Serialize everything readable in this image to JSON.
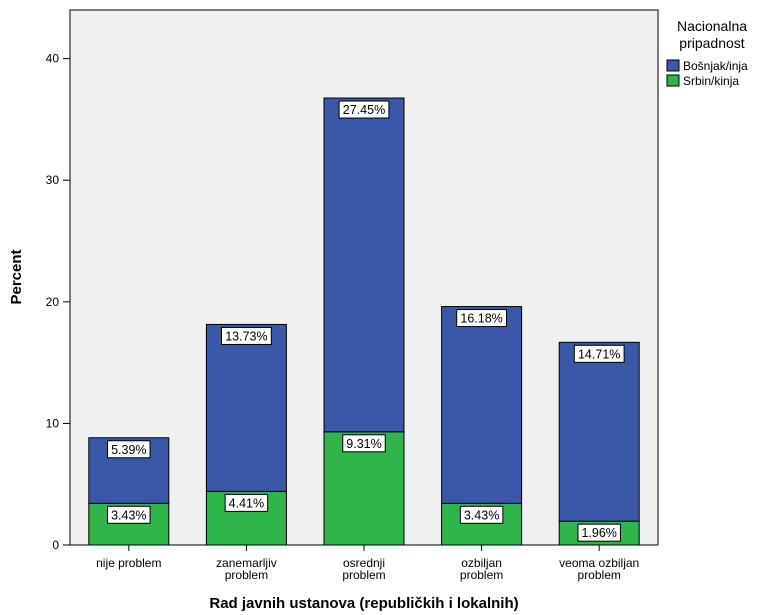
{
  "chart_data": {
    "type": "bar",
    "stacked": true,
    "xlabel": "Rad javnih ustanova (republičkih i lokalnih)",
    "ylabel": "Percent",
    "ylim": [
      0,
      44
    ],
    "yticks": [
      0,
      10,
      20,
      30,
      40
    ],
    "grid": false,
    "legend_position": "right",
    "legend_title": "Nacionalna pripadnost",
    "categories": [
      [
        "nije problem"
      ],
      [
        "zanemarljiv",
        "problem"
      ],
      [
        "osrednji",
        "problem"
      ],
      [
        "ozbiljan",
        "problem"
      ],
      [
        "veoma ozbiljan",
        "problem"
      ]
    ],
    "series": [
      {
        "name": "Bošnjak/inja",
        "color": "#3b58a8",
        "values": [
          5.39,
          13.73,
          27.45,
          16.18,
          14.71
        ],
        "labels": [
          "5.39%",
          "13.73%",
          "27.45%",
          "16.18%",
          "14.71%"
        ]
      },
      {
        "name": "Srbin/kinja",
        "color": "#2fb54a",
        "values": [
          3.43,
          4.41,
          9.31,
          3.43,
          1.96
        ],
        "labels": [
          "3.43%",
          "4.41%",
          "9.31%",
          "3.43%",
          "1.96%"
        ]
      }
    ],
    "plot_background": "#f0f0f0"
  }
}
